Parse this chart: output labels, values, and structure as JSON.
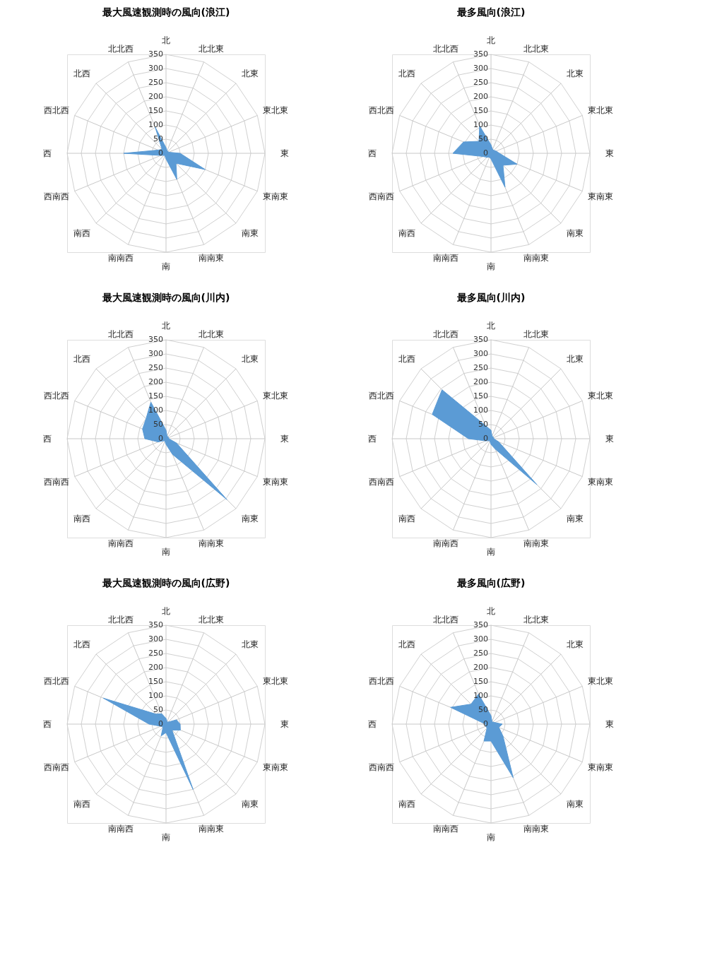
{
  "chart_data": [
    {
      "type": "radar",
      "title": "最大風速観測時の風向(浪江)",
      "categories": [
        "北",
        "北北東",
        "北東",
        "東北東",
        "東",
        "東南東",
        "南東",
        "南南東",
        "南",
        "南南西",
        "南西",
        "西南西",
        "西",
        "西北西",
        "北西",
        "北北西"
      ],
      "ylim": [
        0,
        350
      ],
      "yticks": [
        0,
        50,
        100,
        150,
        200,
        250,
        300,
        350
      ],
      "grid": true,
      "series": [
        {
          "color": "#5b9bd5",
          "values": [
            20,
            10,
            10,
            10,
            50,
            150,
            50,
            100,
            20,
            10,
            10,
            20,
            150,
            30,
            20,
            100
          ]
        }
      ]
    },
    {
      "type": "radar",
      "title": "最多風向(浪江)",
      "categories": [
        "北",
        "北北東",
        "北東",
        "東北東",
        "東",
        "東南東",
        "南東",
        "南南東",
        "南",
        "南南西",
        "南西",
        "西南西",
        "西",
        "西北西",
        "北西",
        "北北西"
      ],
      "ylim": [
        0,
        350
      ],
      "yticks": [
        0,
        50,
        100,
        150,
        200,
        250,
        300,
        350
      ],
      "grid": true,
      "series": [
        {
          "color": "#5b9bd5",
          "values": [
            30,
            15,
            15,
            20,
            30,
            100,
            60,
            130,
            20,
            15,
            20,
            30,
            135,
            105,
            60,
            105
          ]
        }
      ]
    },
    {
      "type": "radar",
      "title": "最大風速観測時の風向(川内)",
      "categories": [
        "北",
        "北北東",
        "北東",
        "東北東",
        "東",
        "東南東",
        "南東",
        "南南東",
        "南",
        "南南西",
        "南西",
        "西南西",
        "西",
        "西北西",
        "北西",
        "北北西"
      ],
      "ylim": [
        0,
        350
      ],
      "yticks": [
        0,
        50,
        100,
        150,
        200,
        250,
        300,
        350
      ],
      "grid": true,
      "series": [
        {
          "color": "#5b9bd5",
          "values": [
            30,
            10,
            10,
            10,
            10,
            40,
            305,
            60,
            20,
            10,
            10,
            30,
            75,
            90,
            100,
            140
          ]
        }
      ]
    },
    {
      "type": "radar",
      "title": "最多風向(川内)",
      "categories": [
        "北",
        "北北東",
        "北東",
        "東北東",
        "東",
        "東南東",
        "南東",
        "南南東",
        "南",
        "南南西",
        "南西",
        "西南西",
        "西",
        "西北西",
        "北西",
        "北北西"
      ],
      "ylim": [
        0,
        350
      ],
      "yticks": [
        0,
        50,
        100,
        150,
        200,
        250,
        300,
        350
      ],
      "grid": true,
      "series": [
        {
          "color": "#5b9bd5",
          "values": [
            30,
            10,
            10,
            10,
            10,
            30,
            230,
            40,
            20,
            10,
            10,
            20,
            80,
            225,
            245,
            50
          ]
        }
      ]
    },
    {
      "type": "radar",
      "title": "最大風速観測時の風向(広野)",
      "categories": [
        "北",
        "北北東",
        "北東",
        "東北東",
        "東",
        "東南東",
        "南東",
        "南南東",
        "南",
        "南南西",
        "南西",
        "西南西",
        "西",
        "西北西",
        "北西",
        "北北西"
      ],
      "ylim": [
        0,
        350
      ],
      "yticks": [
        0,
        50,
        100,
        150,
        200,
        250,
        300,
        350
      ],
      "grid": true,
      "series": [
        {
          "color": "#5b9bd5",
          "values": [
            20,
            10,
            10,
            40,
            50,
            55,
            30,
            250,
            30,
            45,
            15,
            20,
            60,
            240,
            50,
            40
          ]
        }
      ]
    },
    {
      "type": "radar",
      "title": "最多風向(広野)",
      "categories": [
        "北",
        "北北東",
        "北東",
        "東北東",
        "東",
        "東南東",
        "南東",
        "南南東",
        "南",
        "南南西",
        "南西",
        "西南西",
        "西",
        "西北西",
        "北西",
        "北北西"
      ],
      "ylim": [
        0,
        350
      ],
      "yticks": [
        0,
        50,
        100,
        150,
        200,
        250,
        300,
        350
      ],
      "grid": true,
      "series": [
        {
          "color": "#5b9bd5",
          "values": [
            30,
            10,
            10,
            15,
            40,
            30,
            60,
            205,
            60,
            65,
            20,
            20,
            20,
            155,
            100,
            115
          ]
        }
      ]
    }
  ]
}
